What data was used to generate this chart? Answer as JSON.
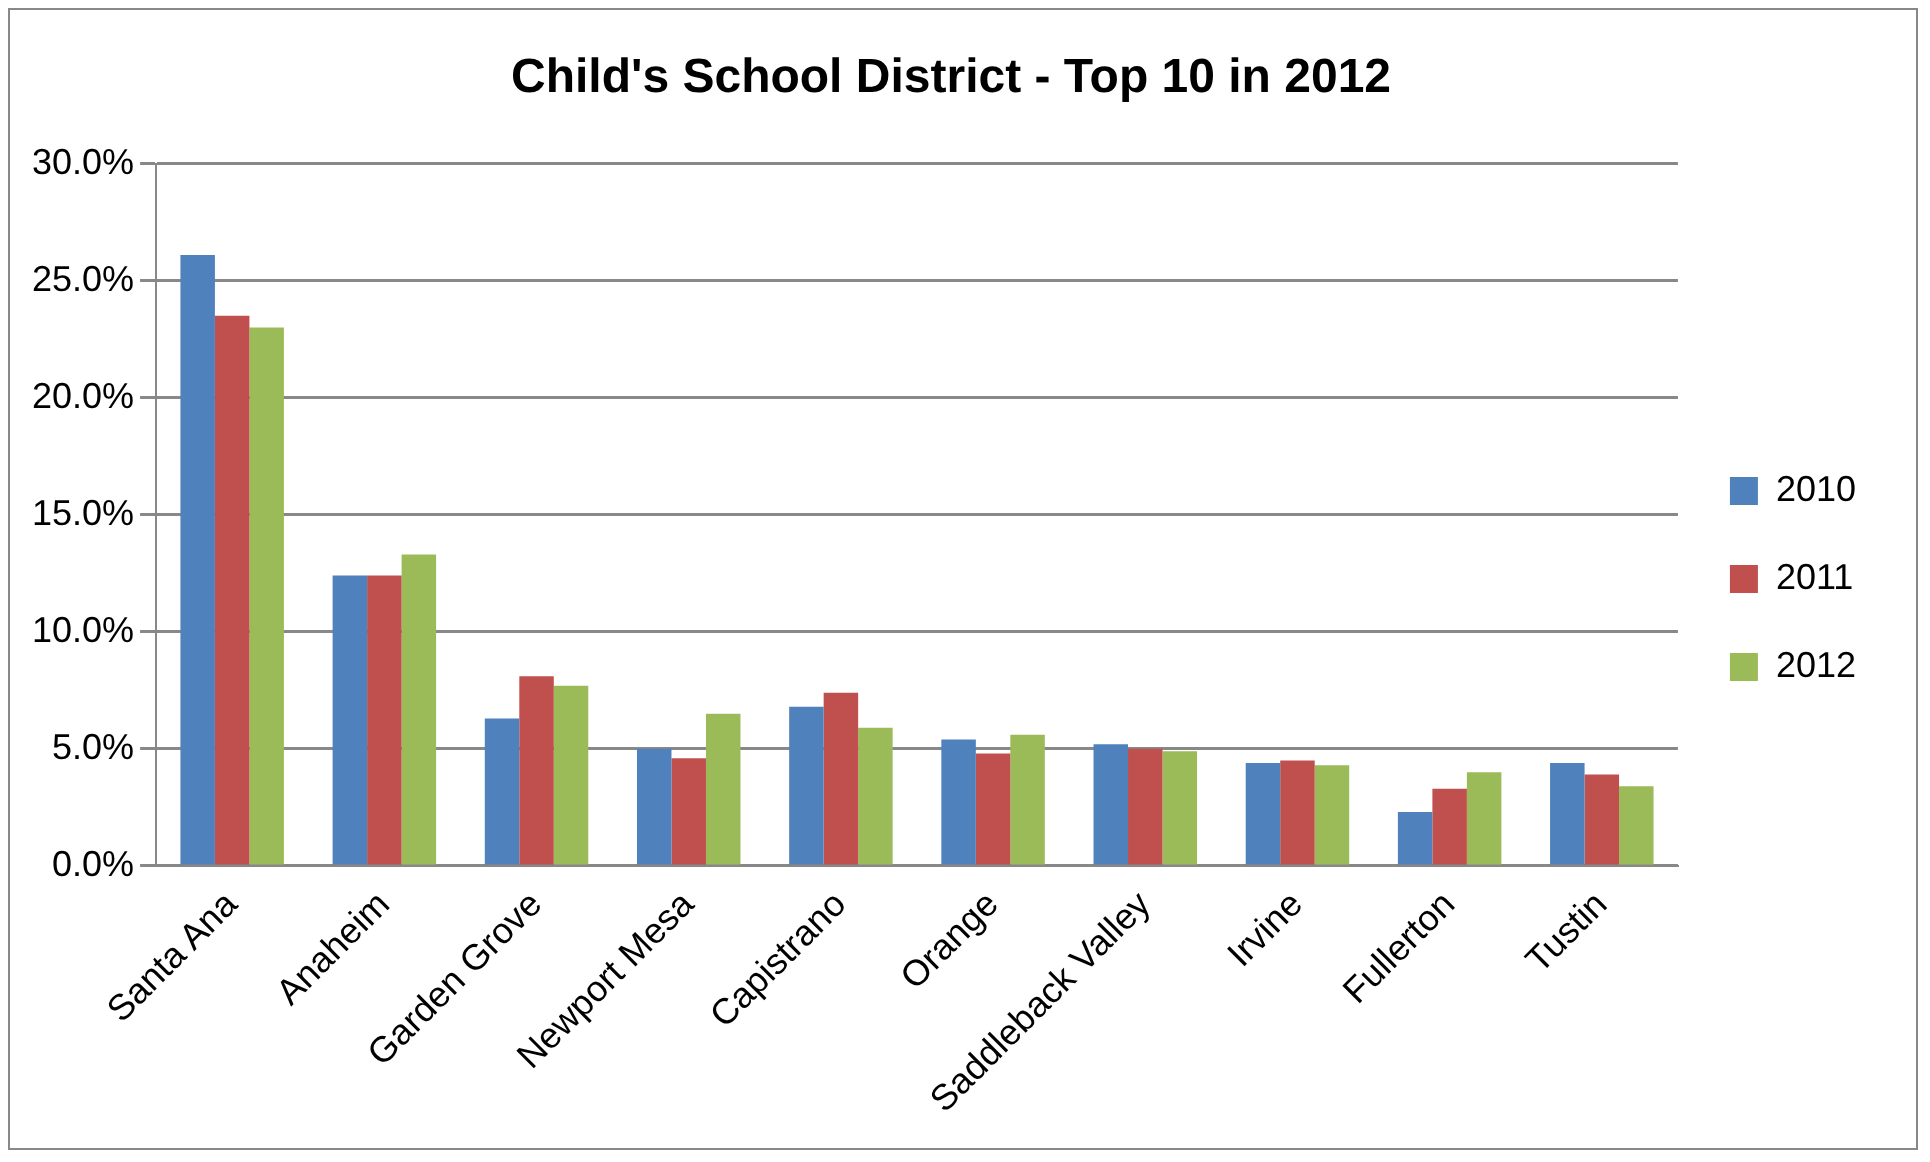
{
  "chart_data": {
    "type": "bar",
    "title": "Child's School District - Top 10 in 2012",
    "categories": [
      "Santa Ana",
      "Anaheim",
      "Garden Grove",
      "Newport Mesa",
      "Capistrano",
      "Orange",
      "Saddleback Valley",
      "Irvine",
      "Fullerton",
      "Tustin"
    ],
    "series": [
      {
        "name": "2010",
        "color": "#4f81bd",
        "values": [
          26.1,
          12.4,
          6.3,
          5.0,
          6.8,
          5.4,
          5.2,
          4.4,
          2.3,
          4.4
        ]
      },
      {
        "name": "2011",
        "color": "#c0504d",
        "values": [
          23.5,
          12.4,
          8.1,
          4.6,
          7.4,
          4.8,
          5.0,
          4.5,
          3.3,
          3.9
        ]
      },
      {
        "name": "2012",
        "color": "#9bbb59",
        "values": [
          23.0,
          13.3,
          7.7,
          6.5,
          5.9,
          5.6,
          4.9,
          4.3,
          4.0,
          3.4
        ]
      }
    ],
    "ylim": [
      0,
      30
    ],
    "yticks": [
      {
        "value": 0,
        "label": "0.0%"
      },
      {
        "value": 5,
        "label": "5.0%"
      },
      {
        "value": 10,
        "label": "10.0%"
      },
      {
        "value": 15,
        "label": "15.0%"
      },
      {
        "value": 20,
        "label": "20.0%"
      },
      {
        "value": 25,
        "label": "25.0%"
      },
      {
        "value": 30,
        "label": "30.0%"
      }
    ],
    "grid": "y",
    "legend": "right"
  }
}
